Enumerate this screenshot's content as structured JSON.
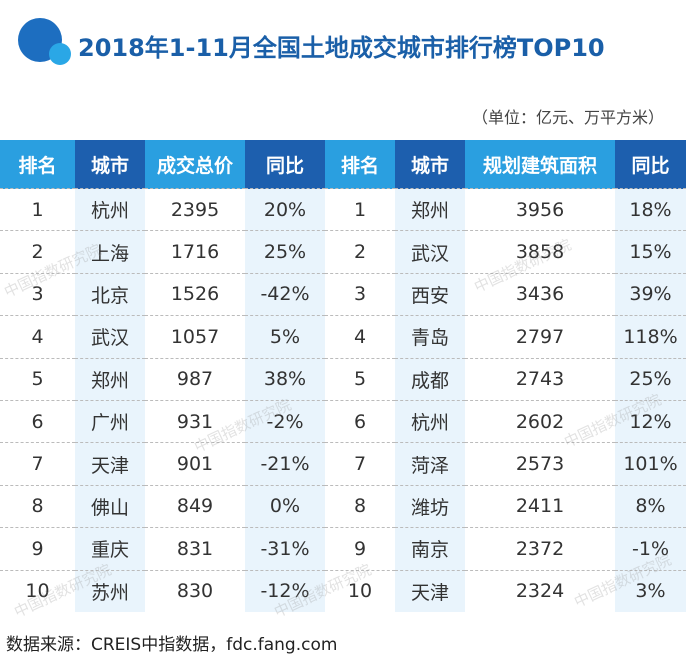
{
  "header": {
    "title": "2018年1-11月全国土地成交城市排行榜TOP10",
    "unit": "（单位：亿元、万平方米）"
  },
  "table": {
    "columns": [
      "排名",
      "城市",
      "成交总价",
      "同比",
      "排名",
      "城市",
      "规划建筑面积",
      "同比"
    ],
    "rows": [
      [
        "1",
        "杭州",
        "2395",
        "20%",
        "1",
        "郑州",
        "3956",
        "18%"
      ],
      [
        "2",
        "上海",
        "1716",
        "25%",
        "2",
        "武汉",
        "3858",
        "15%"
      ],
      [
        "3",
        "北京",
        "1526",
        "-42%",
        "3",
        "西安",
        "3436",
        "39%"
      ],
      [
        "4",
        "武汉",
        "1057",
        "5%",
        "4",
        "青岛",
        "2797",
        "118%"
      ],
      [
        "5",
        "郑州",
        "987",
        "38%",
        "5",
        "成都",
        "2743",
        "25%"
      ],
      [
        "6",
        "广州",
        "931",
        "-2%",
        "6",
        "杭州",
        "2602",
        "12%"
      ],
      [
        "7",
        "天津",
        "901",
        "-21%",
        "7",
        "菏泽",
        "2573",
        "101%"
      ],
      [
        "8",
        "佛山",
        "849",
        "0%",
        "8",
        "潍坊",
        "2411",
        "8%"
      ],
      [
        "9",
        "重庆",
        "831",
        "-31%",
        "9",
        "南京",
        "2372",
        "-1%"
      ],
      [
        "10",
        "苏州",
        "830",
        "-12%",
        "10",
        "天津",
        "2324",
        "3%"
      ]
    ]
  },
  "watermark": "中国指数研究院",
  "footer": {
    "source": "数据来源：CREIS中指数据，fdc.fang.com"
  }
}
